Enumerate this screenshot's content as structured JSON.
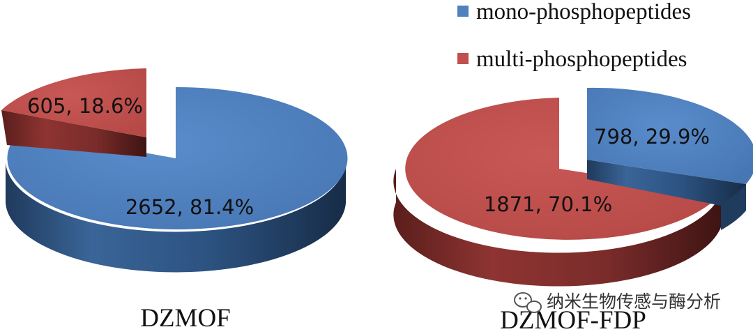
{
  "chart_data": {
    "type": "pie",
    "style": "3d-exploded",
    "legend": {
      "placement": "top-right",
      "entries": [
        {
          "name": "mono-phosphopeptides",
          "color": "#4F81BD"
        },
        {
          "name": "multi-phosphopeptides",
          "color": "#C0504D"
        }
      ]
    },
    "charts": [
      {
        "title": "DZMOF",
        "slices": [
          {
            "series": "mono-phosphopeptides",
            "value": 2652,
            "percent": 81.4,
            "label": "2652, 81.4%",
            "color": "#4F81BD"
          },
          {
            "series": "multi-phosphopeptides",
            "value": 605,
            "percent": 18.6,
            "label": "605, 18.6%",
            "color": "#C0504D"
          }
        ]
      },
      {
        "title": "DZMOF-FDP",
        "slices": [
          {
            "series": "mono-phosphopeptides",
            "value": 798,
            "percent": 29.9,
            "label": "798, 29.9%",
            "color": "#4F81BD"
          },
          {
            "series": "multi-phosphopeptides",
            "value": 1871,
            "percent": 70.1,
            "label": "1871, 70.1%",
            "color": "#C0504D"
          }
        ]
      }
    ]
  },
  "watermark": {
    "text": "纳米生物传感与酶分析",
    "icon": "wechat-icon"
  }
}
